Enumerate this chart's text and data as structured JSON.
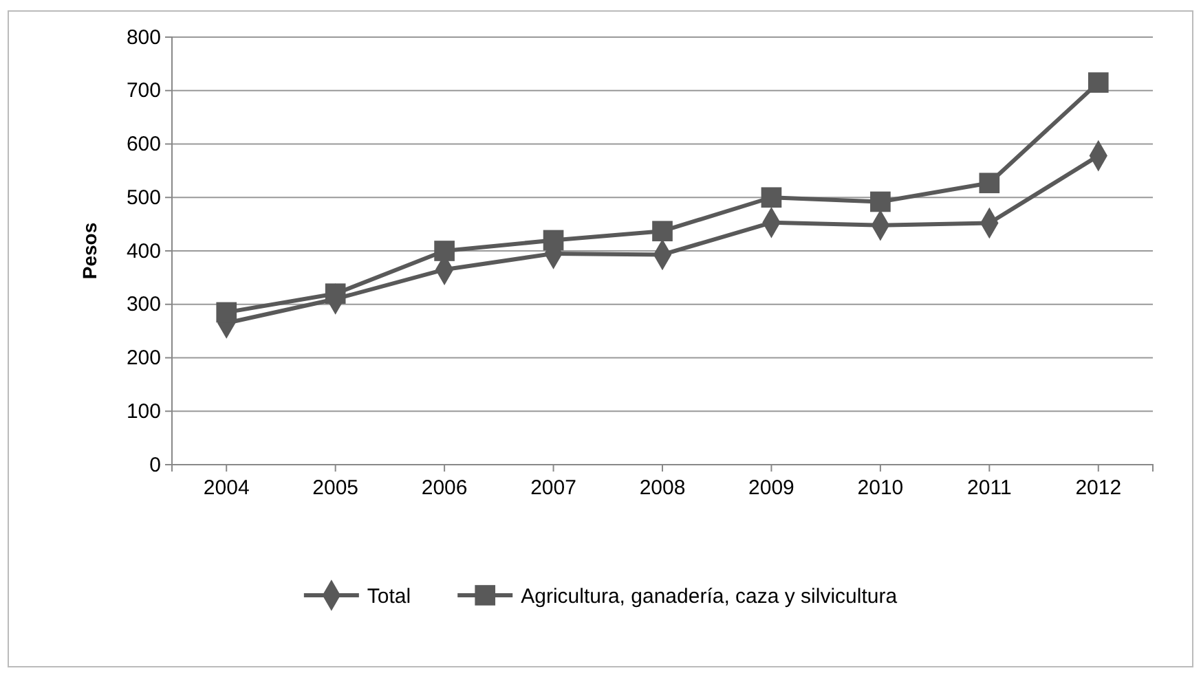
{
  "chart_data": {
    "type": "line",
    "ylabel": "Pesos",
    "categories": [
      "2004",
      "2005",
      "2006",
      "2007",
      "2008",
      "2009",
      "2010",
      "2011",
      "2012"
    ],
    "series": [
      {
        "name": "Total",
        "color": "#595959",
        "marker": "diamond",
        "values": [
          265,
          310,
          365,
          395,
          393,
          453,
          448,
          452,
          578
        ]
      },
      {
        "name": "Agricultura, ganadería, caza y silvicultura",
        "color": "#595959",
        "marker": "square",
        "values": [
          285,
          320,
          400,
          420,
          437,
          500,
          492,
          527,
          715
        ]
      }
    ],
    "ylim": [
      0,
      800
    ],
    "yticks": [
      0,
      100,
      200,
      300,
      400,
      500,
      600,
      700,
      800
    ],
    "grid": "y",
    "legend": "bottom",
    "line_style": "solid"
  }
}
